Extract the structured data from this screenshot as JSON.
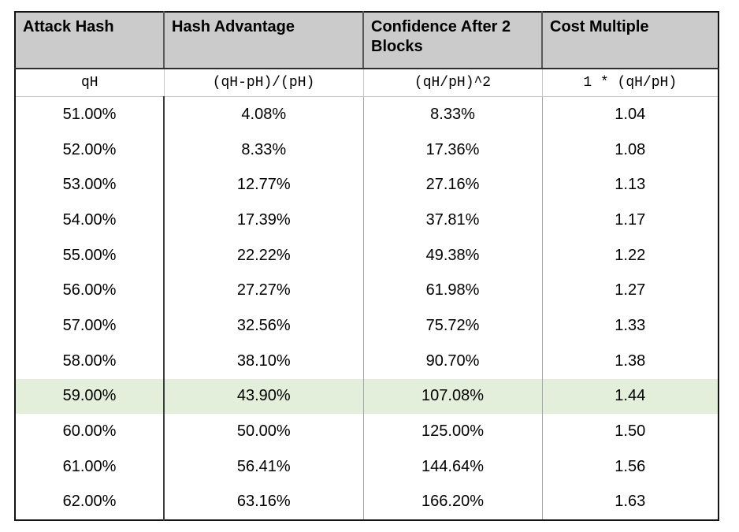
{
  "chart_data": {
    "type": "table",
    "columns": [
      "Attack Hash",
      "Hash Advantage",
      "Confidence After 2 Blocks",
      "Cost Multiple"
    ],
    "formulas": [
      "qH",
      "(qH-pH)/(pH)",
      "(qH/pH)^2",
      "1 * (qH/pH)"
    ],
    "rows": [
      [
        "51.00%",
        "4.08%",
        "8.33%",
        "1.04"
      ],
      [
        "52.00%",
        "8.33%",
        "17.36%",
        "1.08"
      ],
      [
        "53.00%",
        "12.77%",
        "27.16%",
        "1.13"
      ],
      [
        "54.00%",
        "17.39%",
        "37.81%",
        "1.17"
      ],
      [
        "55.00%",
        "22.22%",
        "49.38%",
        "1.22"
      ],
      [
        "56.00%",
        "27.27%",
        "61.98%",
        "1.27"
      ],
      [
        "57.00%",
        "32.56%",
        "75.72%",
        "1.33"
      ],
      [
        "58.00%",
        "38.10%",
        "90.70%",
        "1.38"
      ],
      [
        "59.00%",
        "43.90%",
        "107.08%",
        "1.44"
      ],
      [
        "60.00%",
        "50.00%",
        "125.00%",
        "1.50"
      ],
      [
        "61.00%",
        "56.41%",
        "144.64%",
        "1.56"
      ],
      [
        "62.00%",
        "63.16%",
        "166.20%",
        "1.63"
      ]
    ],
    "highlighted_row_index": 8,
    "highlighted_row_value": "59.00%",
    "colors": {
      "header_background": "#cbcbcb",
      "highlight_background": "#e3eedb",
      "outer_border": "#141414",
      "text": "#000000"
    }
  }
}
